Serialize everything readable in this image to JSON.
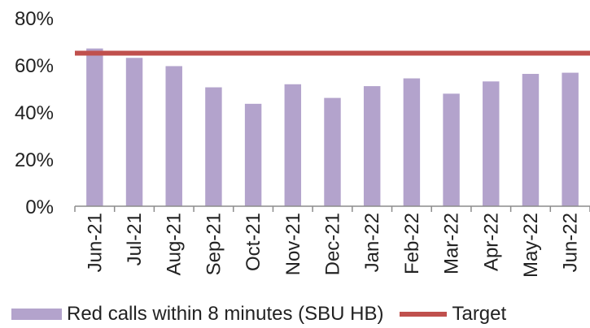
{
  "chart_data": {
    "type": "bar",
    "categories": [
      "Jun-21",
      "Jul-21",
      "Aug-21",
      "Sep-21",
      "Oct-21",
      "Nov-21",
      "Dec-21",
      "Jan-22",
      "Feb-22",
      "Mar-22",
      "Apr-22",
      "May-22",
      "Jun-22"
    ],
    "series": [
      {
        "name": "Red calls within 8 minutes (SBU HB)",
        "values": [
          0.67,
          0.63,
          0.595,
          0.505,
          0.435,
          0.518,
          0.46,
          0.51,
          0.543,
          0.478,
          0.53,
          0.562,
          0.567
        ],
        "color": "#b3a3cc"
      }
    ],
    "target": {
      "name": "Target",
      "value": 0.65,
      "color": "#c0504d"
    },
    "ylim": [
      0,
      0.8
    ],
    "yticks": [
      0,
      0.2,
      0.4,
      0.6,
      0.8
    ],
    "ytick_labels": [
      "0%",
      "20%",
      "40%",
      "60%",
      "80%"
    ],
    "grid": false,
    "legend_position": "bottom"
  }
}
